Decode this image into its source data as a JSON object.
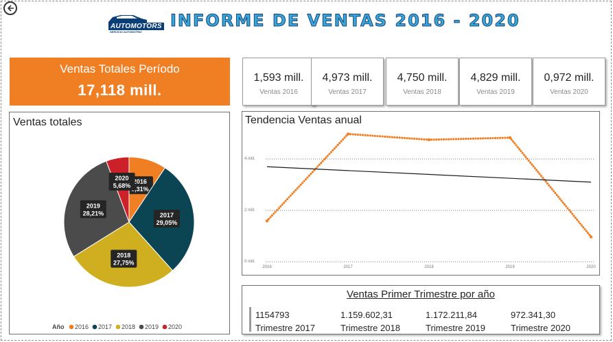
{
  "header": {
    "title": "INFORME DE VENTAS 2016 - 2020",
    "logo_text": "AUTOMOTORS",
    "logo_subtext": "SERVICIO AUTOMOTRIZ"
  },
  "total": {
    "label": "Ventas Totales Período",
    "value": "17,118 mill."
  },
  "kpis": [
    {
      "value": "1,593 mill.",
      "label": "Ventas 2016"
    },
    {
      "value": "4,973 mill.",
      "label": "Ventas 2017"
    },
    {
      "value": "4,750 mill.",
      "label": "Ventas 2018"
    },
    {
      "value": "4,829 mill.",
      "label": "Ventas 2019"
    },
    {
      "value": "0,972 mill.",
      "label": "Ventas 2020"
    }
  ],
  "pie": {
    "title": "Ventas totales",
    "legend_title": "Año"
  },
  "line": {
    "title": "Tendencia Ventas anual"
  },
  "quarter": {
    "title": "Ventas Primer Trimestre por año",
    "items": [
      {
        "value": "1154793",
        "label": "Trimestre 2017"
      },
      {
        "value": "1.159.602,31",
        "label": "Trimestre 2018"
      },
      {
        "value": "1.172.211,84",
        "label": "Trimestre 2019"
      },
      {
        "value": "972.341,30",
        "label": "Trimestre 2020"
      }
    ]
  },
  "colors": {
    "orange": "#f07f24",
    "teal": "#0b4452",
    "mustard": "#cfae1f",
    "gray": "#4b4b4b",
    "red": "#cc2129",
    "title_blue": "#3aa6d8"
  },
  "icons": {
    "back": "back-arrow-icon",
    "logo": "car-logo-icon"
  },
  "chart_data": [
    {
      "type": "pie",
      "title": "Ventas totales",
      "legend_title": "Año",
      "legend_position": "bottom",
      "categories": [
        "2016",
        "2017",
        "2018",
        "2019",
        "2020"
      ],
      "values": [
        9.31,
        29.05,
        27.75,
        28.21,
        5.68
      ],
      "value_labels": [
        "9,31%",
        "29,05%",
        "27,75%",
        "28,21%",
        "5,68%"
      ],
      "colors": [
        "#f07f24",
        "#0b4452",
        "#cfae1f",
        "#4b4b4b",
        "#cc2129"
      ]
    },
    {
      "type": "line",
      "title": "Tendencia Ventas anual",
      "x": [
        "2016",
        "2017",
        "2018",
        "2019",
        "2020"
      ],
      "series": [
        {
          "values": [
            1.593,
            4.973,
            4.75,
            4.829,
            0.972
          ],
          "color": "#f07f24",
          "style": "dotted"
        },
        {
          "values": [
            3.7,
            3.55,
            3.4,
            3.25,
            3.1
          ],
          "color": "#1a1a1a",
          "style": "trend"
        }
      ],
      "yticks": [
        0,
        2,
        4
      ],
      "ytick_labels": [
        "0 mill.",
        "2 mill.",
        "4 mill."
      ],
      "ylim": [
        0,
        5.2
      ],
      "grid": true
    }
  ]
}
